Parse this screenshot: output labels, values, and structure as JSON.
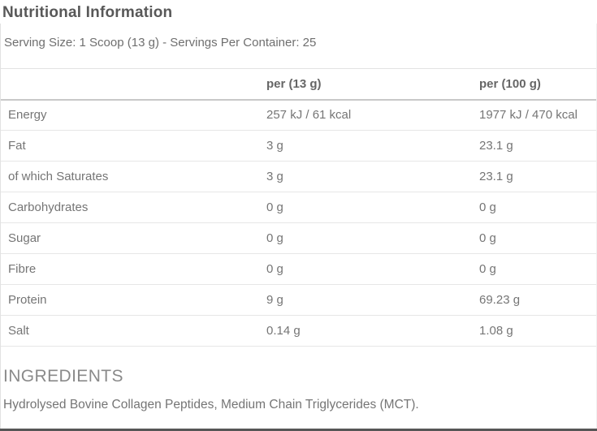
{
  "title": "Nutritional Information",
  "serving_info": "Serving Size: 1 Scoop (13 g) - Servings Per Container: 25",
  "table": {
    "col_headers": [
      "per (13 g)",
      "per (100 g)"
    ],
    "rows": [
      {
        "label": "Energy",
        "per_13g": "257 kJ / 61 kcal",
        "per_100g": "1977 kJ / 470 kcal"
      },
      {
        "label": "Fat",
        "per_13g": "3 g",
        "per_100g": "23.1 g"
      },
      {
        "label": "of which Saturates",
        "per_13g": "3 g",
        "per_100g": "23.1 g"
      },
      {
        "label": "Carbohydrates",
        "per_13g": "0 g",
        "per_100g": "0 g"
      },
      {
        "label": "Sugar",
        "per_13g": "0 g",
        "per_100g": "0 g"
      },
      {
        "label": "Fibre",
        "per_13g": "0 g",
        "per_100g": "0 g"
      },
      {
        "label": "Protein",
        "per_13g": "9 g",
        "per_100g": "69.23 g"
      },
      {
        "label": "Salt",
        "per_13g": "0.14 g",
        "per_100g": "1.08 g"
      }
    ]
  },
  "ingredients": {
    "heading": "INGREDIENTS",
    "text": "Hydrolysed Bovine Collagen Peptides, Medium Chain Triglycerides (MCT)."
  },
  "colors": {
    "title_text": "#585858",
    "body_text": "#757575",
    "header_text": "#666666",
    "row_border": "#e6e6e6",
    "header_border": "#c8c8c8",
    "bottom_border": "#565656"
  }
}
